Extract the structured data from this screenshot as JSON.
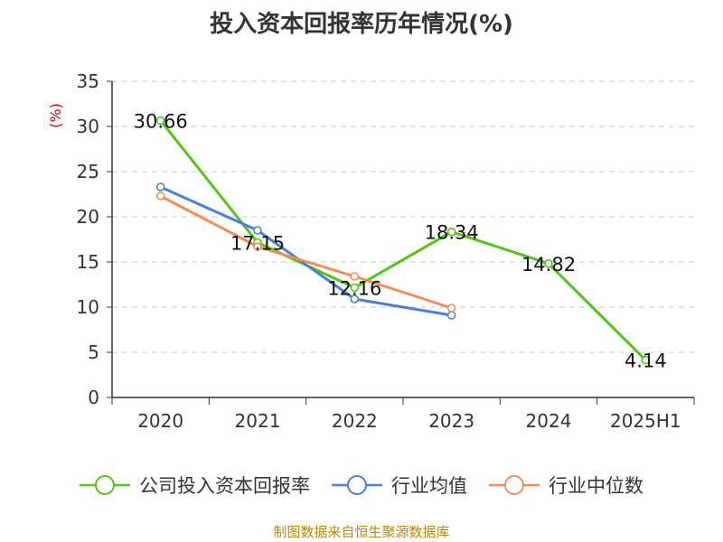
{
  "title": "投入资本回报率历年情况(%)",
  "source": "制图数据来自恒生聚源数据库",
  "chart_data": {
    "type": "line",
    "title": "投入资本回报率历年情况(%)",
    "ylabel": "(%)",
    "xlabel": "",
    "categories": [
      "2020",
      "2021",
      "2022",
      "2023",
      "2024",
      "2025H1"
    ],
    "ylim": [
      0,
      35
    ],
    "yticks": [
      0,
      5,
      10,
      15,
      20,
      25,
      30,
      35
    ],
    "grid": true,
    "legend_position": "bottom",
    "series": [
      {
        "name": "公司投入资本回报率",
        "color": "#52c41a",
        "values": [
          30.66,
          17.15,
          12.16,
          18.34,
          14.82,
          4.14
        ],
        "labels": [
          "30.66",
          "17.15",
          "12.16",
          "18.34",
          "14.82",
          "4.14"
        ]
      },
      {
        "name": "行业均值",
        "color": "#4a7fd8",
        "values": [
          23.3,
          18.5,
          10.9,
          9.1,
          null,
          null
        ]
      },
      {
        "name": "行业中位数",
        "color": "#f28c55",
        "values": [
          22.3,
          16.7,
          13.4,
          9.9,
          null,
          null
        ]
      }
    ]
  }
}
